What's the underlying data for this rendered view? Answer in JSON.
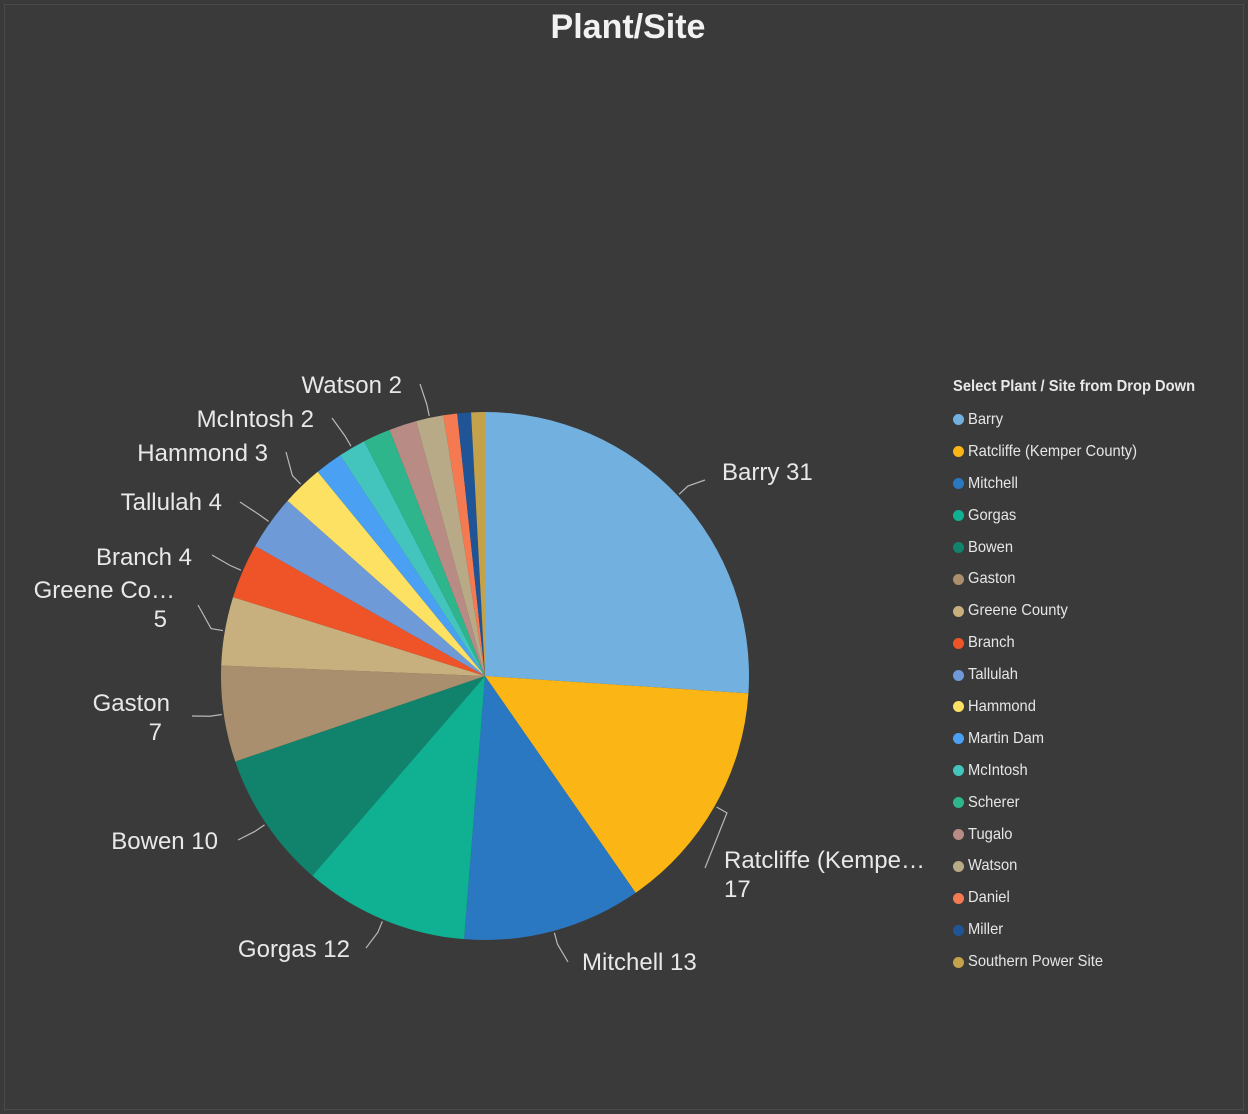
{
  "chart_data": {
    "type": "pie",
    "title": "Plant/Site",
    "legend_title": "Select Plant / Site from Drop Down",
    "legend_position": "right",
    "slices": [
      {
        "name": "Barry",
        "value": 31,
        "color": "#72b0e0",
        "label_line1": "Barry 31"
      },
      {
        "name": "Ratcliffe (Kemper County)",
        "value": 17,
        "color": "#fbb615",
        "label_line1": "Ratcliffe (Kempe…",
        "label_line2": "17"
      },
      {
        "name": "Mitchell",
        "value": 13,
        "color": "#2a78c2",
        "label_line1": "Mitchell 13"
      },
      {
        "name": "Gorgas",
        "value": 12,
        "color": "#10b092",
        "label_line1": "Gorgas 12"
      },
      {
        "name": "Bowen",
        "value": 10,
        "color": "#11836d",
        "label_line1": "Bowen 10"
      },
      {
        "name": "Gaston",
        "value": 7,
        "color": "#a98f6e",
        "label_line1": "Gaston",
        "label_line2": "7"
      },
      {
        "name": "Greene County",
        "value": 5,
        "color": "#c7b07d",
        "label_line1": "Greene Co…",
        "label_line2": "5"
      },
      {
        "name": "Branch",
        "value": 4,
        "color": "#ef5429",
        "label_line1": "Branch 4"
      },
      {
        "name": "Tallulah",
        "value": 4,
        "color": "#6f9ad8",
        "label_line1": "Tallulah 4"
      },
      {
        "name": "Hammond",
        "value": 3,
        "color": "#fde163",
        "label_line1": "Hammond 3"
      },
      {
        "name": "Martin Dam",
        "value": 2,
        "color": "#4aa1f4"
      },
      {
        "name": "McIntosh",
        "value": 2,
        "color": "#43c5be",
        "label_line1": "McIntosh 2"
      },
      {
        "name": "Scherer",
        "value": 2,
        "color": "#2eb58c"
      },
      {
        "name": "Tugalo",
        "value": 2,
        "color": "#b88b84"
      },
      {
        "name": "Watson",
        "value": 2,
        "color": "#b8aa86",
        "label_line1": "Watson 2"
      },
      {
        "name": "Daniel",
        "value": 1,
        "color": "#f57a52"
      },
      {
        "name": "Miller",
        "value": 1,
        "color": "#1f5597"
      },
      {
        "name": "Southern Power Site",
        "value": 1,
        "color": "#c4a24c"
      }
    ]
  }
}
